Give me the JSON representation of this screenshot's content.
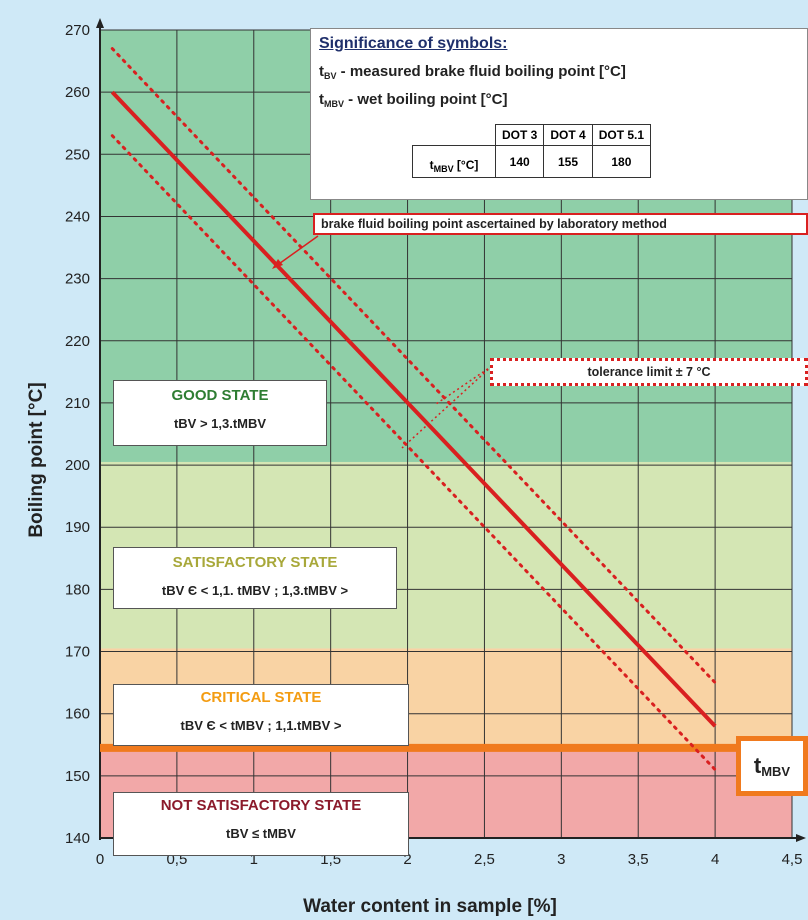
{
  "chart_data": {
    "type": "line",
    "xlabel": "Water content in sample [%]",
    "ylabel": "Boiling point [°C]",
    "xlim": [
      0,
      4.5
    ],
    "ylim": [
      140,
      270
    ],
    "x_ticks": [
      "0",
      "0,5",
      "1",
      "1,5",
      "2",
      "2,5",
      "3",
      "3,5",
      "4",
      "4,5"
    ],
    "y_ticks": [
      "140",
      "150",
      "160",
      "170",
      "180",
      "190",
      "200",
      "210",
      "220",
      "230",
      "240",
      "250",
      "260",
      "270"
    ],
    "grid": true,
    "regions": [
      {
        "name": "GOOD STATE",
        "y_from": 200.5,
        "y_to": 270,
        "color": "#8fcfa8"
      },
      {
        "name": "SATISFACTORY STATE",
        "y_from": 170.5,
        "y_to": 200.5,
        "color": "#d4e6b4"
      },
      {
        "name": "CRITICAL STATE",
        "y_from": 155,
        "y_to": 170.5,
        "color": "#f9d3a4"
      },
      {
        "name": "NOT SATISFACTORY STATE",
        "y_from": 140,
        "y_to": 155,
        "color": "#f2a8a8"
      }
    ],
    "series": [
      {
        "style": "solid",
        "color": "#d92020",
        "x": [
          0.08,
          4.0
        ],
        "y": [
          260,
          158
        ]
      },
      {
        "style": "dotted",
        "color": "#d92020",
        "x": [
          0.08,
          4.0
        ],
        "y": [
          267,
          165
        ]
      },
      {
        "style": "dotted",
        "color": "#d92020",
        "x": [
          0.08,
          4.0
        ],
        "y": [
          253,
          151
        ]
      }
    ],
    "reference_line": {
      "y": 154.5,
      "color": "#f07a1e"
    }
  },
  "legend": {
    "title": "Significance of symbols:",
    "tbv_symbol": "t",
    "tbv_sub": "BV",
    "tbv_text": " - measured  brake fluid boiling point [°C]",
    "tmbv_symbol": "t",
    "tmbv_sub": "MBV",
    "tmbv_text": " - wet boiling point [°C]",
    "table_headers": [
      "DOT 3",
      "DOT 4",
      "DOT 5.1"
    ],
    "table_row_label": "t",
    "table_row_sub": "MBV",
    "table_row_unit": " [°C]",
    "table_values": [
      "140",
      "155",
      "180"
    ]
  },
  "labels": {
    "lab_method": "brake fluid boiling point ascertained  by  laboratory method",
    "tolerance": "tolerance limit ± 7 °C",
    "tmbv_main": "t",
    "tmbv_sub": "MBV"
  },
  "states": {
    "good": {
      "title": "GOOD STATE",
      "formula": "tBV > 1,3.tMBV"
    },
    "satisfactory": {
      "title": "SATISFACTORY STATE",
      "formula": "tBV Є < 1,1. tMBV ; 1,3.tMBV >"
    },
    "critical": {
      "title": "CRITICAL STATE",
      "formula": "tBV Є < tMBV ; 1,1.tMBV >"
    },
    "not_satisfactory": {
      "title": "NOT SATISFACTORY STATE",
      "formula": "tBV ≤ tMBV"
    }
  }
}
